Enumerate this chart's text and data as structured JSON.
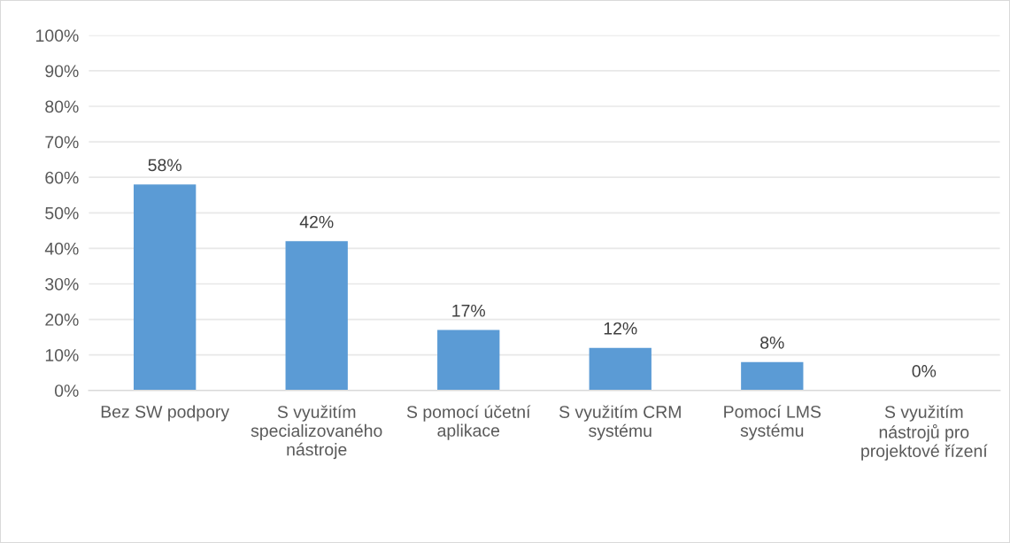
{
  "chart_data": {
    "type": "bar",
    "categories": [
      "Bez SW podpory",
      "S využitím specializovaného nástroje",
      "S pomocí účetní aplikace",
      "S využitím CRM systému",
      "Pomocí LMS systému",
      "S využitím nástrojů pro projektové řízení"
    ],
    "values": [
      58,
      42,
      17,
      12,
      8,
      0
    ],
    "value_labels": [
      "58%",
      "42%",
      "17%",
      "12%",
      "8%",
      "0%"
    ],
    "color": "#5b9bd5",
    "ylim": [
      0,
      100
    ],
    "yticks": [
      {
        "value": 0,
        "label": "0%"
      },
      {
        "value": 10,
        "label": "10%"
      },
      {
        "value": 20,
        "label": "20%"
      },
      {
        "value": 30,
        "label": "30%"
      },
      {
        "value": 40,
        "label": "40%"
      },
      {
        "value": 50,
        "label": "50%"
      },
      {
        "value": 60,
        "label": "60%"
      },
      {
        "value": 70,
        "label": "70%"
      },
      {
        "value": 80,
        "label": "80%"
      },
      {
        "value": 90,
        "label": "90%"
      },
      {
        "value": 100,
        "label": "100%"
      }
    ],
    "grid": "y"
  }
}
